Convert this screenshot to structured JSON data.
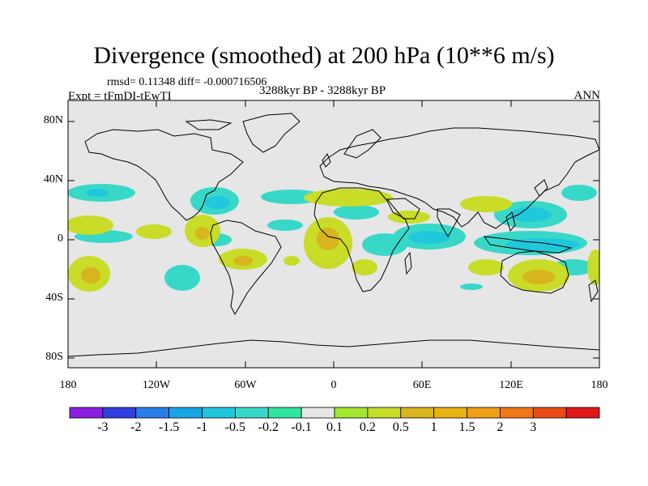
{
  "header": {
    "title": "Divergence (smoothed) at 200 hPa (10**6 m/s)",
    "stats": "rmsd= 0.11348 diff= -0.000716506",
    "experiment": "Expt = tFmDI-tEwTI",
    "period": "3288kyr BP - 3288kyr BP",
    "season": "ANN"
  },
  "map": {
    "projection": "cylindrical-equidistant",
    "lon_range": [
      -180,
      180
    ],
    "lat_range": [
      -90,
      90
    ],
    "background_color": "#e6e6e6",
    "y_tick_labels": [
      "80N",
      "40N",
      "0",
      "40S",
      "80S"
    ],
    "x_tick_labels": [
      "180",
      "120W",
      "60W",
      "0",
      "60E",
      "120E",
      "180"
    ]
  },
  "colorbar": {
    "colors": [
      "#8b1ee0",
      "#2f3fe0",
      "#2a7ce8",
      "#18a6e6",
      "#20c8dc",
      "#38d8c8",
      "#2ee6a0",
      "#e6e6e6",
      "#a2e62e",
      "#c8dc28",
      "#d8b41e",
      "#e8b414",
      "#f0a014",
      "#f07818",
      "#e84c14",
      "#e01818"
    ],
    "labels": [
      "-3",
      "-2",
      "-1.5",
      "-1",
      "-0.5",
      "-0.2",
      "-0.1",
      "0.1",
      "0.2",
      "0.5",
      "1",
      "1.5",
      "2",
      "3"
    ]
  }
}
